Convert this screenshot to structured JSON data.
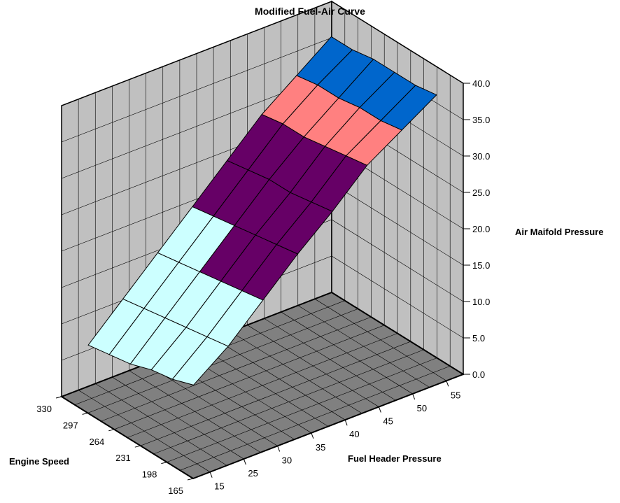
{
  "chart_data": {
    "type": "surface",
    "title": "Modified Fuel-Air Curve",
    "xlabel": "Fuel Header Pressure",
    "ylabel": "Engine Speed",
    "zlabel": "Air Maifold Pressure",
    "x_ticks": [
      "15",
      "25",
      "30",
      "35",
      "40",
      "45",
      "50",
      "55"
    ],
    "y_ticks": [
      "165",
      "198",
      "231",
      "264",
      "297",
      "330"
    ],
    "z_ticks": [
      "0.0",
      "5.0",
      "10.0",
      "15.0",
      "20.0",
      "25.0",
      "30.0",
      "35.0",
      "40.0"
    ],
    "zlim": [
      0,
      40
    ],
    "grid": true,
    "legend": "none",
    "z_values": [
      [
        11.0,
        14.5,
        19.0,
        23.5,
        27.5,
        32.0,
        35.0,
        38.0
      ],
      [
        10.0,
        14.0,
        18.5,
        23.0,
        27.0,
        31.5,
        34.5,
        37.5
      ],
      [
        9.5,
        13.5,
        18.0,
        22.5,
        26.5,
        31.0,
        34.5,
        37.5
      ],
      [
        8.5,
        13.0,
        17.5,
        22.0,
        26.5,
        30.5,
        34.0,
        37.5
      ],
      [
        8.0,
        12.5,
        17.0,
        21.5,
        26.0,
        30.5,
        34.0,
        37.0
      ],
      [
        7.5,
        12.0,
        16.5,
        21.0,
        25.5,
        30.0,
        33.5,
        37.0
      ]
    ],
    "color_bands": [
      {
        "range": [
          0,
          10
        ],
        "color": "#FFFFCC"
      },
      {
        "range": [
          10,
          20
        ],
        "color": "#CCFFFF"
      },
      {
        "range": [
          20,
          30
        ],
        "color": "#660066"
      },
      {
        "range": [
          30,
          35
        ],
        "color": "#FF8080"
      },
      {
        "range": [
          35,
          40
        ],
        "color": "#0066CC"
      },
      {
        "range": [
          40,
          45
        ],
        "color": "#CCCCFF"
      }
    ],
    "floor_color": "#808080",
    "wall_color": "#C0C0C0"
  }
}
